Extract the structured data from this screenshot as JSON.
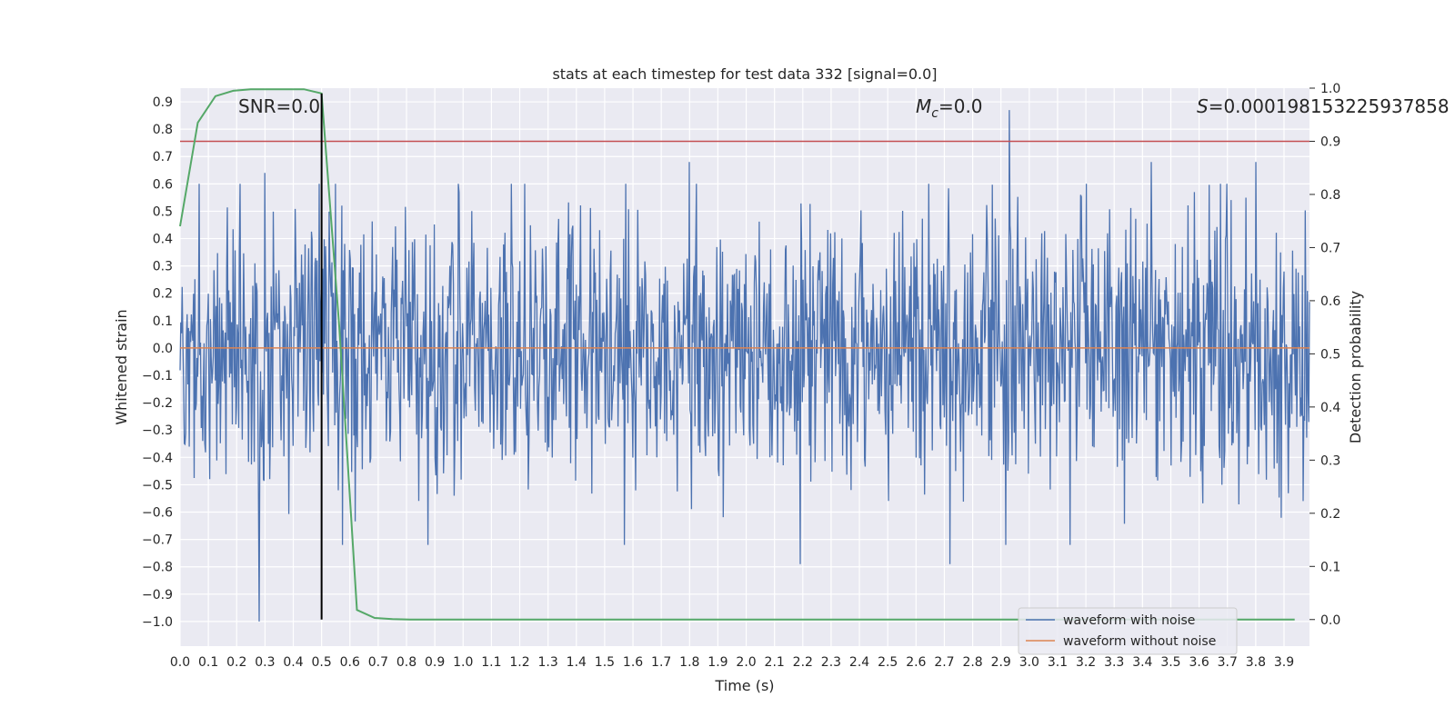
{
  "chart_data": {
    "type": "line",
    "title": "stats at each timestep for test data 332 [signal=0.0]",
    "xlabel": "Time (s)",
    "ylabel": "Whitened strain",
    "y2label": "Detection probability",
    "xlim": [
      0.0,
      3.99
    ],
    "ylim": [
      -1.09,
      0.95
    ],
    "y2lim": [
      -0.05,
      1.0
    ],
    "x_ticks": [
      "0.0",
      "0.1",
      "0.2",
      "0.3",
      "0.4",
      "0.5",
      "0.6",
      "0.7",
      "0.8",
      "0.9",
      "1.0",
      "1.1",
      "1.2",
      "1.3",
      "1.4",
      "1.5",
      "1.6",
      "1.7",
      "1.8",
      "1.9",
      "2.0",
      "2.1",
      "2.2",
      "2.3",
      "2.4",
      "2.5",
      "2.6",
      "2.7",
      "2.8",
      "2.9",
      "3.0",
      "3.1",
      "3.2",
      "3.3",
      "3.4",
      "3.5",
      "3.6",
      "3.7",
      "3.8",
      "3.9"
    ],
    "y_ticks": [
      "0.9",
      "0.8",
      "0.7",
      "0.6",
      "0.5",
      "0.4",
      "0.3",
      "0.2",
      "0.1",
      "0.0",
      "−0.1",
      "−0.2",
      "−0.3",
      "−0.4",
      "−0.5",
      "−0.6",
      "−0.7",
      "−0.8",
      "−0.9",
      "−1.0"
    ],
    "y2_ticks": [
      "1.0",
      "0.9",
      "0.8",
      "0.7",
      "0.6",
      "0.5",
      "0.4",
      "0.3",
      "0.2",
      "0.1",
      "0.0"
    ],
    "grid": true,
    "legend_placement": "lower right",
    "annotations": {
      "snr": "SNR=0.0",
      "mc_symbol": "M",
      "mc_sub": "c",
      "mc_value": "=0.0",
      "s_symbol": "S",
      "s_value": "=0.000198153225937858"
    },
    "series": [
      {
        "name": "waveform with noise",
        "color": "#4c72b0",
        "axis": "left",
        "style": "dense noise",
        "approx_range": [
          -1.0,
          0.87
        ],
        "noted_peaks": [
          [
            0.28,
            -1.0
          ],
          [
            0.3,
            0.64
          ],
          [
            1.8,
            0.68
          ],
          [
            2.19,
            -0.79
          ],
          [
            2.72,
            -0.79
          ],
          [
            2.93,
            0.87
          ],
          [
            3.43,
            0.68
          ],
          [
            3.8,
            0.68
          ]
        ]
      },
      {
        "name": "waveform without noise",
        "color": "#dd8452",
        "axis": "left",
        "x": [
          0.0,
          3.99
        ],
        "y": [
          0.0,
          0.0
        ]
      },
      {
        "name": "",
        "color": "#55a868",
        "axis": "right",
        "x": [
          0.0,
          0.0625,
          0.125,
          0.1875,
          0.25,
          0.3125,
          0.375,
          0.4375,
          0.5,
          0.5625,
          0.625,
          0.6875,
          0.75,
          0.8125,
          1.0,
          2.0,
          3.0,
          3.9375
        ],
        "y": [
          0.74,
          0.935,
          0.985,
          0.995,
          0.998,
          0.998,
          0.998,
          0.998,
          0.99,
          0.55,
          0.018,
          0.003,
          0.001,
          0.0,
          0.0,
          0.0,
          0.0,
          0.0
        ]
      }
    ],
    "threshold": {
      "color": "#c44e52",
      "axis": "right",
      "value": 0.9
    },
    "marker_line": {
      "color": "#000000",
      "axis": "right",
      "x": 0.5,
      "y_range": [
        0.0,
        0.99
      ]
    }
  }
}
